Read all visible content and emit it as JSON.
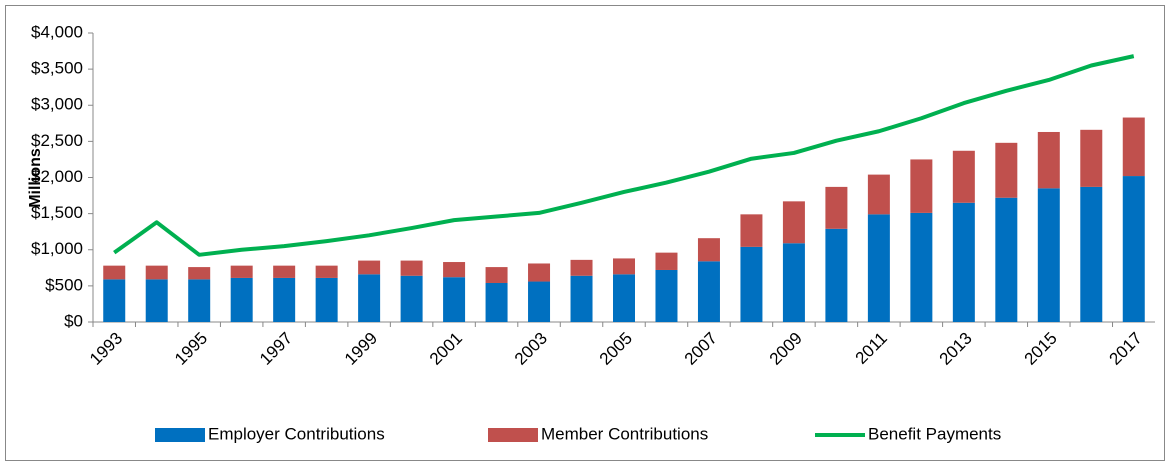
{
  "chart_data": {
    "type": "bar-line",
    "y_label": "Millions",
    "categories": [
      "1993",
      null,
      "1995",
      null,
      "1997",
      null,
      "1999",
      null,
      "2001",
      null,
      "2003",
      null,
      "2005",
      null,
      "2007",
      null,
      "2009",
      null,
      "2011",
      null,
      "2013",
      null,
      "2015",
      null,
      "2017"
    ],
    "series": [
      {
        "name": "Employer Contributions",
        "type": "bar",
        "stack": "contrib",
        "color": "#0070c0",
        "values": [
          590,
          590,
          590,
          610,
          610,
          610,
          660,
          640,
          620,
          540,
          560,
          640,
          660,
          720,
          840,
          1040,
          1090,
          1290,
          1490,
          1510,
          1650,
          1720,
          1850,
          1870,
          2020
        ]
      },
      {
        "name": "Member Contributions",
        "type": "bar",
        "stack": "contrib",
        "color": "#c0504d",
        "values": [
          190,
          190,
          170,
          170,
          170,
          170,
          190,
          210,
          210,
          220,
          250,
          220,
          220,
          240,
          320,
          450,
          580,
          580,
          550,
          740,
          720,
          760,
          780,
          790,
          810
        ]
      },
      {
        "name": "Benefit Payments",
        "type": "line",
        "color": "#00b050",
        "values": [
          960,
          1380,
          930,
          1000,
          1050,
          1120,
          1200,
          1300,
          1410,
          1460,
          1510,
          1650,
          1800,
          1930,
          2080,
          2260,
          2340,
          2510,
          2640,
          2820,
          3030,
          3200,
          3350,
          3550,
          3680
        ]
      }
    ],
    "ylim": [
      0,
      4000
    ],
    "yticks": [
      {
        "value": 0,
        "label": "$0"
      },
      {
        "value": 500,
        "label": "$500"
      },
      {
        "value": 1000,
        "label": "$1,000"
      },
      {
        "value": 1500,
        "label": "$1,500"
      },
      {
        "value": 2000,
        "label": "$2,000"
      },
      {
        "value": 2500,
        "label": "$2,500"
      },
      {
        "value": 3000,
        "label": "$3,000"
      },
      {
        "value": 3500,
        "label": "$3,500"
      },
      {
        "value": 4000,
        "label": "$4,000"
      }
    ],
    "grid": false,
    "legend": "bottom"
  }
}
